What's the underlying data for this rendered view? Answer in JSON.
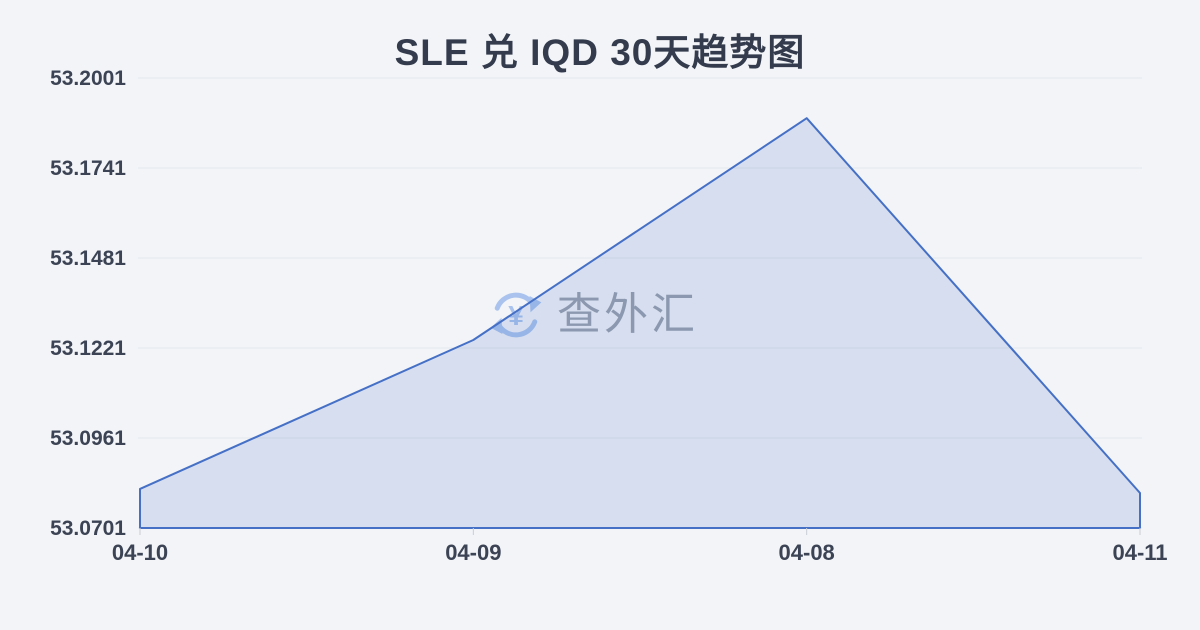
{
  "title": "SLE 兑 IQD 30天趋势图",
  "watermark": {
    "text": "查外汇",
    "icon_glyph": "¥",
    "icon_color": "#a9c3ee",
    "text_color": "#99a0ab"
  },
  "theme": {
    "background": "#f2f4f7",
    "title_color": "#333b4d"
  },
  "chart_data": {
    "type": "area",
    "title": "SLE 兑 IQD 30天趋势图",
    "categories": [
      "04-10",
      "04-09",
      "04-08",
      "04-11"
    ],
    "values": [
      53.0814,
      53.1244,
      53.1885,
      53.0802
    ],
    "y_ticks": [
      "53.2001",
      "53.1741",
      "53.1481",
      "53.1221",
      "53.0961",
      "53.0701"
    ],
    "ylim": [
      53.0701,
      53.2001
    ],
    "grid": true,
    "legend": false,
    "line_color": "#4570c6",
    "fill_color": "rgba(69,112,198,0.16)",
    "grid_color": "#e4e7ec",
    "tick_color": "#c9cdd6",
    "label_color": "#3b4354"
  }
}
